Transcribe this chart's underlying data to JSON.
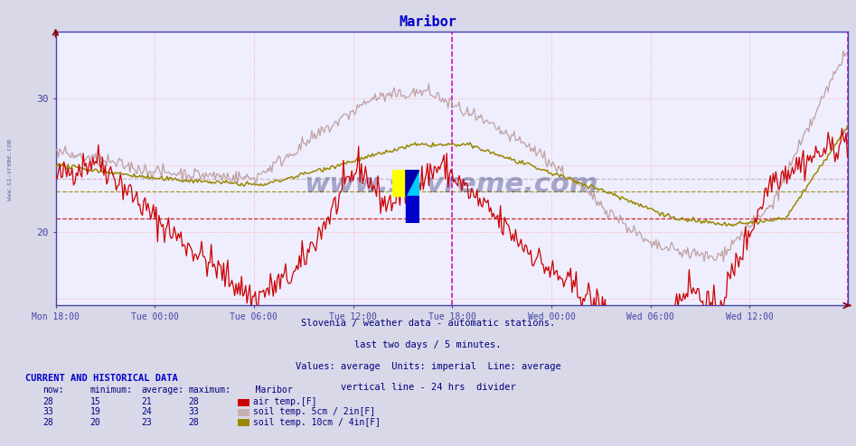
{
  "title": "Maribor",
  "title_color": "#0000cc",
  "bg_color": "#d8d8e8",
  "plot_bg_color": "#eeeeff",
  "grid_color": "#ffaaaa",
  "ylabel_color": "#000080",
  "xlabel_color": "#4444aa",
  "tick_color": "#4444aa",
  "spine_color": "#4444aa",
  "ylim": [
    14.5,
    35
  ],
  "yticks": [
    20,
    30
  ],
  "n_points": 576,
  "x_tick_labels": [
    "Mon 18:00",
    "Tue 00:00",
    "Tue 06:00",
    "Tue 12:00",
    "Tue 18:00",
    "Wed 00:00",
    "Wed 06:00",
    "Wed 12:00"
  ],
  "x_tick_positions": [
    0,
    72,
    144,
    216,
    288,
    360,
    432,
    504
  ],
  "avg_line_red": 21,
  "avg_line_tan": 24,
  "avg_line_gold": 23,
  "vline_pos": 288,
  "air_temp_color": "#cc0000",
  "soil5_color": "#c0a0a0",
  "soil10_color": "#998800",
  "footer_lines": [
    "Slovenia / weather data - automatic stations.",
    "last two days / 5 minutes.",
    "Values: average  Units: imperial  Line: average",
    "vertical line - 24 hrs  divider"
  ],
  "legend_title": "Maribor",
  "legend_rows": [
    {
      "now": "28",
      "min": "15",
      "avg": "21",
      "max": "28",
      "color": "#cc0000",
      "label": "air temp.[F]"
    },
    {
      "now": "33",
      "min": "19",
      "avg": "24",
      "max": "33",
      "color": "#c8b0b0",
      "label": "soil temp. 5cm / 2in[F]"
    },
    {
      "now": "28",
      "min": "20",
      "avg": "23",
      "max": "28",
      "color": "#998800",
      "label": "soil temp. 10cm / 4in[F]"
    }
  ],
  "current_data_title": "CURRENT AND HISTORICAL DATA",
  "left_label": "www.si-vreme.com"
}
